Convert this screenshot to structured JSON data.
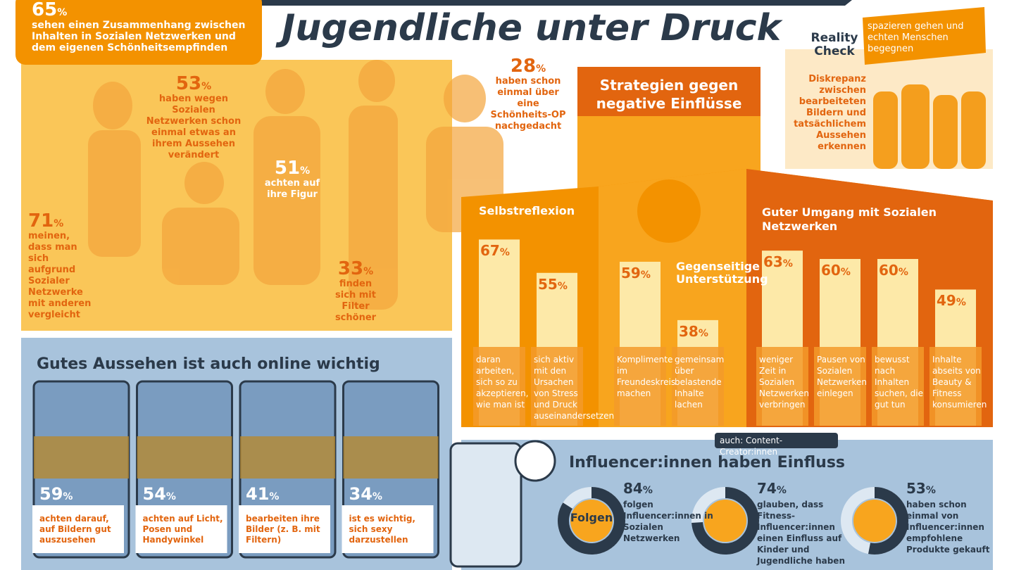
{
  "title": "Jugendliche unter Druck",
  "illustration_stats": [
    {
      "value": 65,
      "unit": "%",
      "text": "sehen einen Zusammenhang zwischen Inhalten in Sozialen Netzwerken und dem eigenen Schönheitsempfinden"
    },
    {
      "value": 53,
      "unit": "%",
      "text": "haben wegen Sozialen Netzwerken schon einmal etwas an ihrem Aussehen verändert"
    },
    {
      "value": 51,
      "unit": "%",
      "text": "achten auf ihre Figur"
    },
    {
      "value": 28,
      "unit": "%",
      "text": "haben schon einmal über eine Schönheits-OP nachgedacht"
    },
    {
      "value": 71,
      "unit": "%",
      "text": "meinen, dass man sich aufgrund Sozialer Netzwerke mit anderen vergleicht"
    },
    {
      "value": 33,
      "unit": "%",
      "text": "finden sich mit Filter schöner"
    }
  ],
  "reality_check": {
    "title": "Reality Check",
    "tag": "spazieren gehen und echten Menschen begegnen",
    "text": "Diskrepanz zwischen bearbeiteten Bildern und tatsächlichem Aussehen erkennen"
  },
  "strategies": {
    "title": "Strategien gegen negative Einflüsse",
    "groups": [
      {
        "title": "Selbstreflexion",
        "items": [
          {
            "value": 67,
            "unit": "%",
            "text": "daran arbeiten, sich so zu akzeptieren, wie man ist"
          },
          {
            "value": 55,
            "unit": "%",
            "text": "sich aktiv mit den Ursachen von Stress und Druck auseinandersetzen"
          }
        ]
      },
      {
        "title": "Gegenseitige Unterstützung",
        "items": [
          {
            "value": 59,
            "unit": "%",
            "text": "Komplimente im Freundeskreis machen"
          },
          {
            "value": 38,
            "unit": "%",
            "text": "gemeinsam über belastende Inhalte lachen"
          }
        ]
      },
      {
        "title": "Guter Umgang mit Sozialen Netzwerken",
        "items": [
          {
            "value": 63,
            "unit": "%",
            "text": "weniger Zeit in Sozialen Netzwerken verbringen"
          },
          {
            "value": 60,
            "unit": "%",
            "text": "Pausen von Sozialen Netzwerken einlegen"
          },
          {
            "value": 60,
            "unit": "%",
            "text": "bewusst nach Inhalten suchen, die gut tun"
          },
          {
            "value": 49,
            "unit": "%",
            "text": "Inhalte abseits von Beauty & Fitness konsumieren"
          }
        ]
      }
    ]
  },
  "online": {
    "title": "Gutes Aussehen ist auch online wichtig",
    "items": [
      {
        "value": 59,
        "unit": "%",
        "text": "achten darauf, auf Bildern gut auszusehen"
      },
      {
        "value": 54,
        "unit": "%",
        "text": "achten auf Licht, Posen und Handywinkel"
      },
      {
        "value": 41,
        "unit": "%",
        "text": "bearbeiten ihre Bilder (z. B. mit Filtern)"
      },
      {
        "value": 34,
        "unit": "%",
        "text": "ist es wichtig, sich sexy darzustellen"
      }
    ]
  },
  "influencer": {
    "title": "Influencer:innen haben Einfluss",
    "tag": "auch: Content-Creator:innen",
    "icon_label": "Folgen",
    "items": [
      {
        "value": 84,
        "unit": "%",
        "text": "folgen Influencer:innen in Sozialen Netzwerken"
      },
      {
        "value": 74,
        "unit": "%",
        "text": "glauben, dass Fitness-Influencer:innen einen Einfluss auf Kinder und Jugendliche haben"
      },
      {
        "value": 53,
        "unit": "%",
        "text": "haben schon einmal von Influencer:innen empfohlene Produkte gekauft"
      }
    ]
  }
}
